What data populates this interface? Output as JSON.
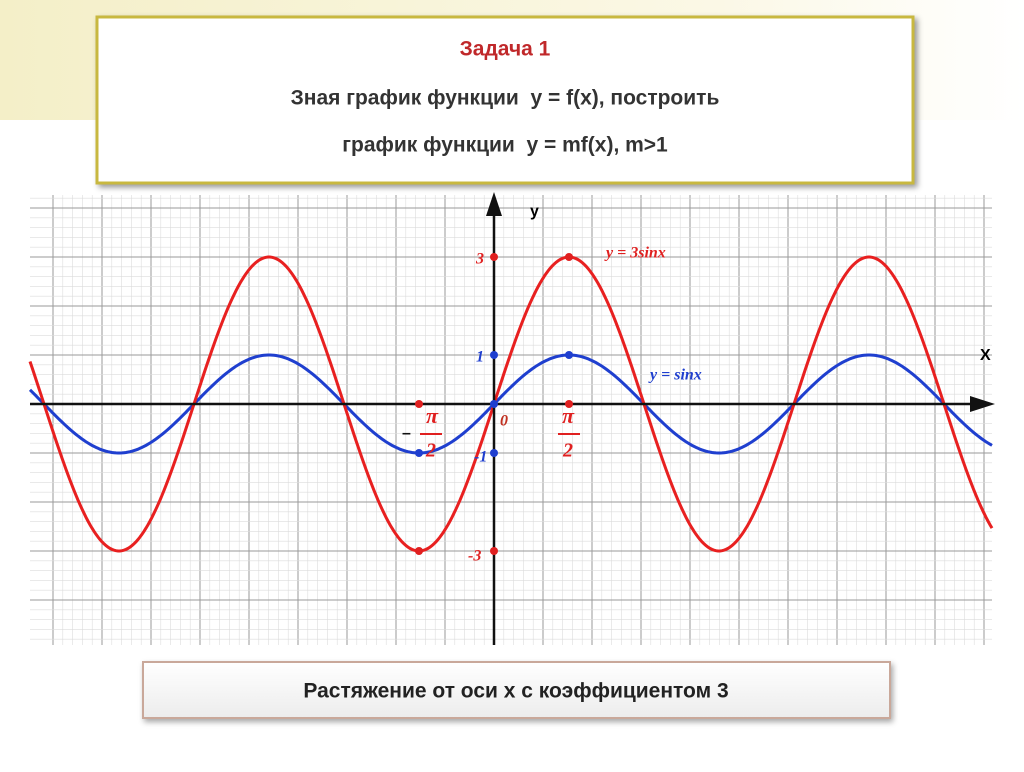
{
  "header": {
    "task": "Задача 1",
    "line1": "Зная график функции  y = f(x), построить",
    "line2": "график функции  y = mf(x), m>1"
  },
  "graph": {
    "y_axis": "y",
    "x_axis": "X",
    "tick_3": "3",
    "tick_1": "1",
    "tick_0": "0",
    "tick_m1": "-1",
    "tick_m3": "-3",
    "pi": "π",
    "two": "2",
    "minus": "–",
    "label_red": "y = 3sinx",
    "label_blue": "y = sinx"
  },
  "footer": "Растяжение от оси x с коэффициентом 3"
}
